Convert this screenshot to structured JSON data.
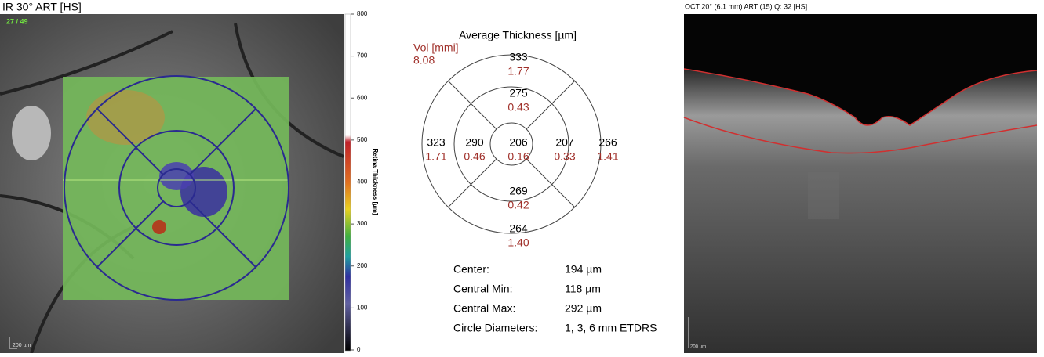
{
  "left_panel": {
    "title": "IR 30° ART [HS]",
    "frame": "27 / 49",
    "scale_bar": "200 µm",
    "colorbar": {
      "label": "Retina Thickness [µm]",
      "ticks": [
        "800",
        "700",
        "600",
        "500",
        "400",
        "300",
        "200",
        "100",
        "0"
      ]
    }
  },
  "etdrs": {
    "title": "Average Thickness [µm]",
    "vol_label": "Vol [mmi]",
    "vol_total": "8.08",
    "sectors": [
      {
        "position": "center",
        "thickness": "206",
        "volume": "0.16"
      },
      {
        "position": "inner-superior",
        "thickness": "275",
        "volume": "0.43"
      },
      {
        "position": "inner-inferior",
        "thickness": "269",
        "volume": "0.42"
      },
      {
        "position": "inner-left",
        "thickness": "290",
        "volume": "0.46"
      },
      {
        "position": "inner-right",
        "thickness": "207",
        "volume": "0.33"
      },
      {
        "position": "outer-superior",
        "thickness": "333",
        "volume": "1.77"
      },
      {
        "position": "outer-inferior",
        "thickness": "264",
        "volume": "1.40"
      },
      {
        "position": "outer-left",
        "thickness": "323",
        "volume": "1.71"
      },
      {
        "position": "outer-right",
        "thickness": "266",
        "volume": "1.41"
      }
    ]
  },
  "stats": {
    "rows": [
      [
        "Center:",
        "194 µm"
      ],
      [
        "Central Min:",
        "118 µm"
      ],
      [
        "Central Max:",
        "292 µm"
      ],
      [
        "Circle Diameters:",
        "1, 3, 6 mm ETDRS"
      ]
    ]
  },
  "right_panel": {
    "title": "OCT 20° (6.1 mm) ART (15) Q: 32 [HS]",
    "scale_bar": "200 µm"
  }
}
